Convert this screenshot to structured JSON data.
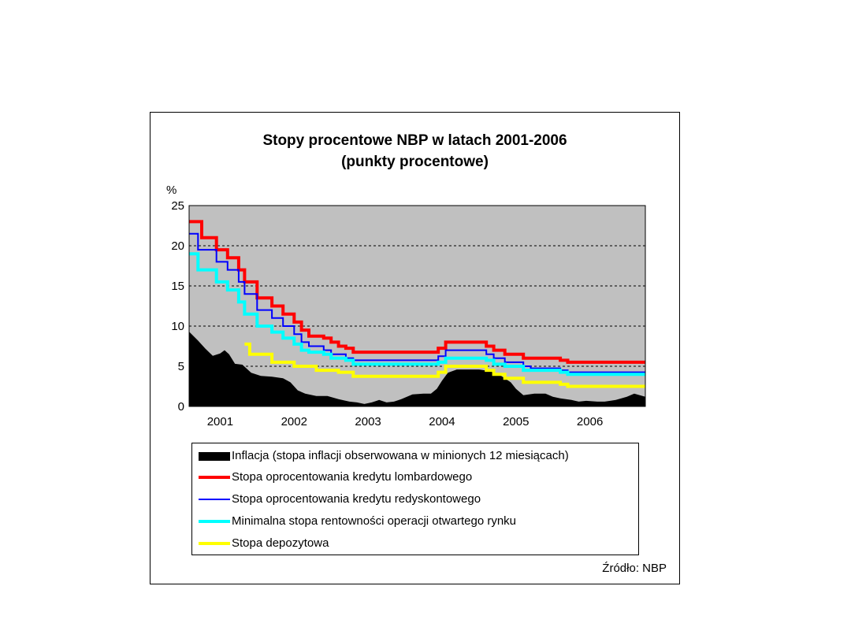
{
  "chart_data": {
    "type": "line",
    "title": "Stopy procentowe NBP w latach 2001-2006",
    "subtitle": "(punkty procentowe)",
    "ylabel": "%",
    "ylim": [
      0,
      25
    ],
    "yticks": [
      0,
      5,
      10,
      15,
      20,
      25
    ],
    "xlim": [
      2000.58,
      2006.75
    ],
    "x_tick_labels": [
      {
        "label": "2001",
        "x": 2001.0
      },
      {
        "label": "2002",
        "x": 2002.0
      },
      {
        "label": "2003",
        "x": 2003.0
      },
      {
        "label": "2004",
        "x": 2004.0
      },
      {
        "label": "2005",
        "x": 2005.0
      },
      {
        "label": "2006",
        "x": 2006.0
      }
    ],
    "grid": "horizontal dashed",
    "plot_background": "#c0c0c0",
    "series": [
      {
        "name": "Inflacja  (stopa inflacji obserwowana w minionych 12 miesiącach)",
        "kind": "area",
        "color": "#000000",
        "points": [
          [
            2000.58,
            9.3
          ],
          [
            2000.7,
            8.2
          ],
          [
            2000.8,
            7.2
          ],
          [
            2000.9,
            6.3
          ],
          [
            2001.0,
            6.6
          ],
          [
            2001.06,
            7.0
          ],
          [
            2001.12,
            6.5
          ],
          [
            2001.2,
            5.3
          ],
          [
            2001.3,
            5.2
          ],
          [
            2001.42,
            4.2
          ],
          [
            2001.55,
            3.8
          ],
          [
            2001.7,
            3.7
          ],
          [
            2001.85,
            3.5
          ],
          [
            2001.95,
            3.0
          ],
          [
            2002.05,
            2.0
          ],
          [
            2002.15,
            1.6
          ],
          [
            2002.3,
            1.3
          ],
          [
            2002.45,
            1.3
          ],
          [
            2002.6,
            0.9
          ],
          [
            2002.75,
            0.6
          ],
          [
            2002.85,
            0.5
          ],
          [
            2002.95,
            0.3
          ],
          [
            2003.05,
            0.5
          ],
          [
            2003.15,
            0.8
          ],
          [
            2003.25,
            0.5
          ],
          [
            2003.35,
            0.6
          ],
          [
            2003.45,
            0.9
          ],
          [
            2003.6,
            1.5
          ],
          [
            2003.75,
            1.6
          ],
          [
            2003.85,
            1.6
          ],
          [
            2003.93,
            2.2
          ],
          [
            2004.0,
            3.2
          ],
          [
            2004.08,
            4.2
          ],
          [
            2004.2,
            4.6
          ],
          [
            2004.35,
            4.6
          ],
          [
            2004.5,
            4.6
          ],
          [
            2004.65,
            4.4
          ],
          [
            2004.8,
            3.8
          ],
          [
            2004.93,
            3.0
          ],
          [
            2005.0,
            2.2
          ],
          [
            2005.1,
            1.4
          ],
          [
            2005.25,
            1.6
          ],
          [
            2005.4,
            1.6
          ],
          [
            2005.5,
            1.2
          ],
          [
            2005.6,
            1.0
          ],
          [
            2005.75,
            0.8
          ],
          [
            2005.85,
            0.6
          ],
          [
            2005.95,
            0.7
          ],
          [
            2006.1,
            0.6
          ],
          [
            2006.2,
            0.6
          ],
          [
            2006.35,
            0.8
          ],
          [
            2006.5,
            1.2
          ],
          [
            2006.6,
            1.6
          ],
          [
            2006.75,
            1.2
          ]
        ]
      },
      {
        "name": "Stopa oprocentowania kredytu lombardowego",
        "kind": "step",
        "color": "#ff0000",
        "points": [
          [
            2000.58,
            23.0
          ],
          [
            2000.75,
            21.0
          ],
          [
            2000.95,
            19.5
          ],
          [
            2001.1,
            18.5
          ],
          [
            2001.25,
            17.0
          ],
          [
            2001.33,
            15.5
          ],
          [
            2001.5,
            13.5
          ],
          [
            2001.7,
            12.5
          ],
          [
            2001.85,
            11.5
          ],
          [
            2002.0,
            10.5
          ],
          [
            2002.1,
            9.5
          ],
          [
            2002.2,
            8.75
          ],
          [
            2002.4,
            8.5
          ],
          [
            2002.5,
            8.0
          ],
          [
            2002.6,
            7.5
          ],
          [
            2002.7,
            7.25
          ],
          [
            2002.8,
            6.75
          ],
          [
            2003.9,
            6.75
          ],
          [
            2003.95,
            7.25
          ],
          [
            2004.05,
            8.0
          ],
          [
            2004.6,
            7.5
          ],
          [
            2004.7,
            7.0
          ],
          [
            2004.85,
            6.5
          ],
          [
            2005.1,
            6.0
          ],
          [
            2005.6,
            5.75
          ],
          [
            2005.7,
            5.5
          ],
          [
            2006.75,
            5.5
          ]
        ]
      },
      {
        "name": "Stopa oprocentowania kredytu redyskontowego",
        "kind": "step",
        "color": "#0000ff",
        "points": [
          [
            2000.58,
            21.5
          ],
          [
            2000.7,
            19.5
          ],
          [
            2000.95,
            18.0
          ],
          [
            2001.1,
            17.0
          ],
          [
            2001.25,
            15.5
          ],
          [
            2001.33,
            14.0
          ],
          [
            2001.5,
            12.0
          ],
          [
            2001.7,
            11.0
          ],
          [
            2001.85,
            10.0
          ],
          [
            2002.0,
            9.0
          ],
          [
            2002.1,
            8.0
          ],
          [
            2002.2,
            7.5
          ],
          [
            2002.4,
            7.0
          ],
          [
            2002.5,
            6.5
          ],
          [
            2002.7,
            6.0
          ],
          [
            2002.8,
            5.75
          ],
          [
            2003.9,
            5.75
          ],
          [
            2003.95,
            6.25
          ],
          [
            2004.05,
            7.0
          ],
          [
            2004.6,
            6.5
          ],
          [
            2004.7,
            6.0
          ],
          [
            2004.85,
            5.5
          ],
          [
            2005.1,
            5.0
          ],
          [
            2005.2,
            4.75
          ],
          [
            2005.6,
            4.5
          ],
          [
            2005.7,
            4.25
          ],
          [
            2006.75,
            4.25
          ]
        ]
      },
      {
        "name": "Minimalna stopa rentowności operacji otwartego rynku",
        "kind": "step",
        "color": "#00ffff",
        "points": [
          [
            2000.58,
            19.0
          ],
          [
            2000.7,
            17.0
          ],
          [
            2000.95,
            15.5
          ],
          [
            2001.1,
            14.5
          ],
          [
            2001.25,
            13.0
          ],
          [
            2001.33,
            11.5
          ],
          [
            2001.5,
            10.0
          ],
          [
            2001.7,
            9.25
          ],
          [
            2001.85,
            8.5
          ],
          [
            2002.0,
            7.75
          ],
          [
            2002.1,
            7.0
          ],
          [
            2002.2,
            6.75
          ],
          [
            2002.4,
            6.5
          ],
          [
            2002.5,
            6.0
          ],
          [
            2002.7,
            5.75
          ],
          [
            2002.8,
            5.25
          ],
          [
            2003.9,
            5.25
          ],
          [
            2003.95,
            5.5
          ],
          [
            2004.05,
            6.0
          ],
          [
            2004.6,
            5.75
          ],
          [
            2004.7,
            5.25
          ],
          [
            2004.85,
            5.0
          ],
          [
            2005.1,
            4.5
          ],
          [
            2005.6,
            4.25
          ],
          [
            2005.7,
            4.0
          ],
          [
            2006.75,
            4.0
          ]
        ]
      },
      {
        "name": "Stopa depozytowa",
        "kind": "step",
        "color": "#ffff00",
        "points": [
          [
            2001.33,
            7.75
          ],
          [
            2001.4,
            6.5
          ],
          [
            2001.7,
            5.5
          ],
          [
            2002.0,
            5.0
          ],
          [
            2002.3,
            4.5
          ],
          [
            2002.6,
            4.25
          ],
          [
            2002.8,
            3.75
          ],
          [
            2003.9,
            3.75
          ],
          [
            2003.95,
            4.25
          ],
          [
            2004.05,
            5.0
          ],
          [
            2004.6,
            4.5
          ],
          [
            2004.7,
            4.0
          ],
          [
            2004.85,
            3.5
          ],
          [
            2005.1,
            3.0
          ],
          [
            2005.6,
            2.75
          ],
          [
            2005.7,
            2.5
          ],
          [
            2006.75,
            2.5
          ]
        ]
      }
    ]
  },
  "source_note": "Źródło: NBP"
}
